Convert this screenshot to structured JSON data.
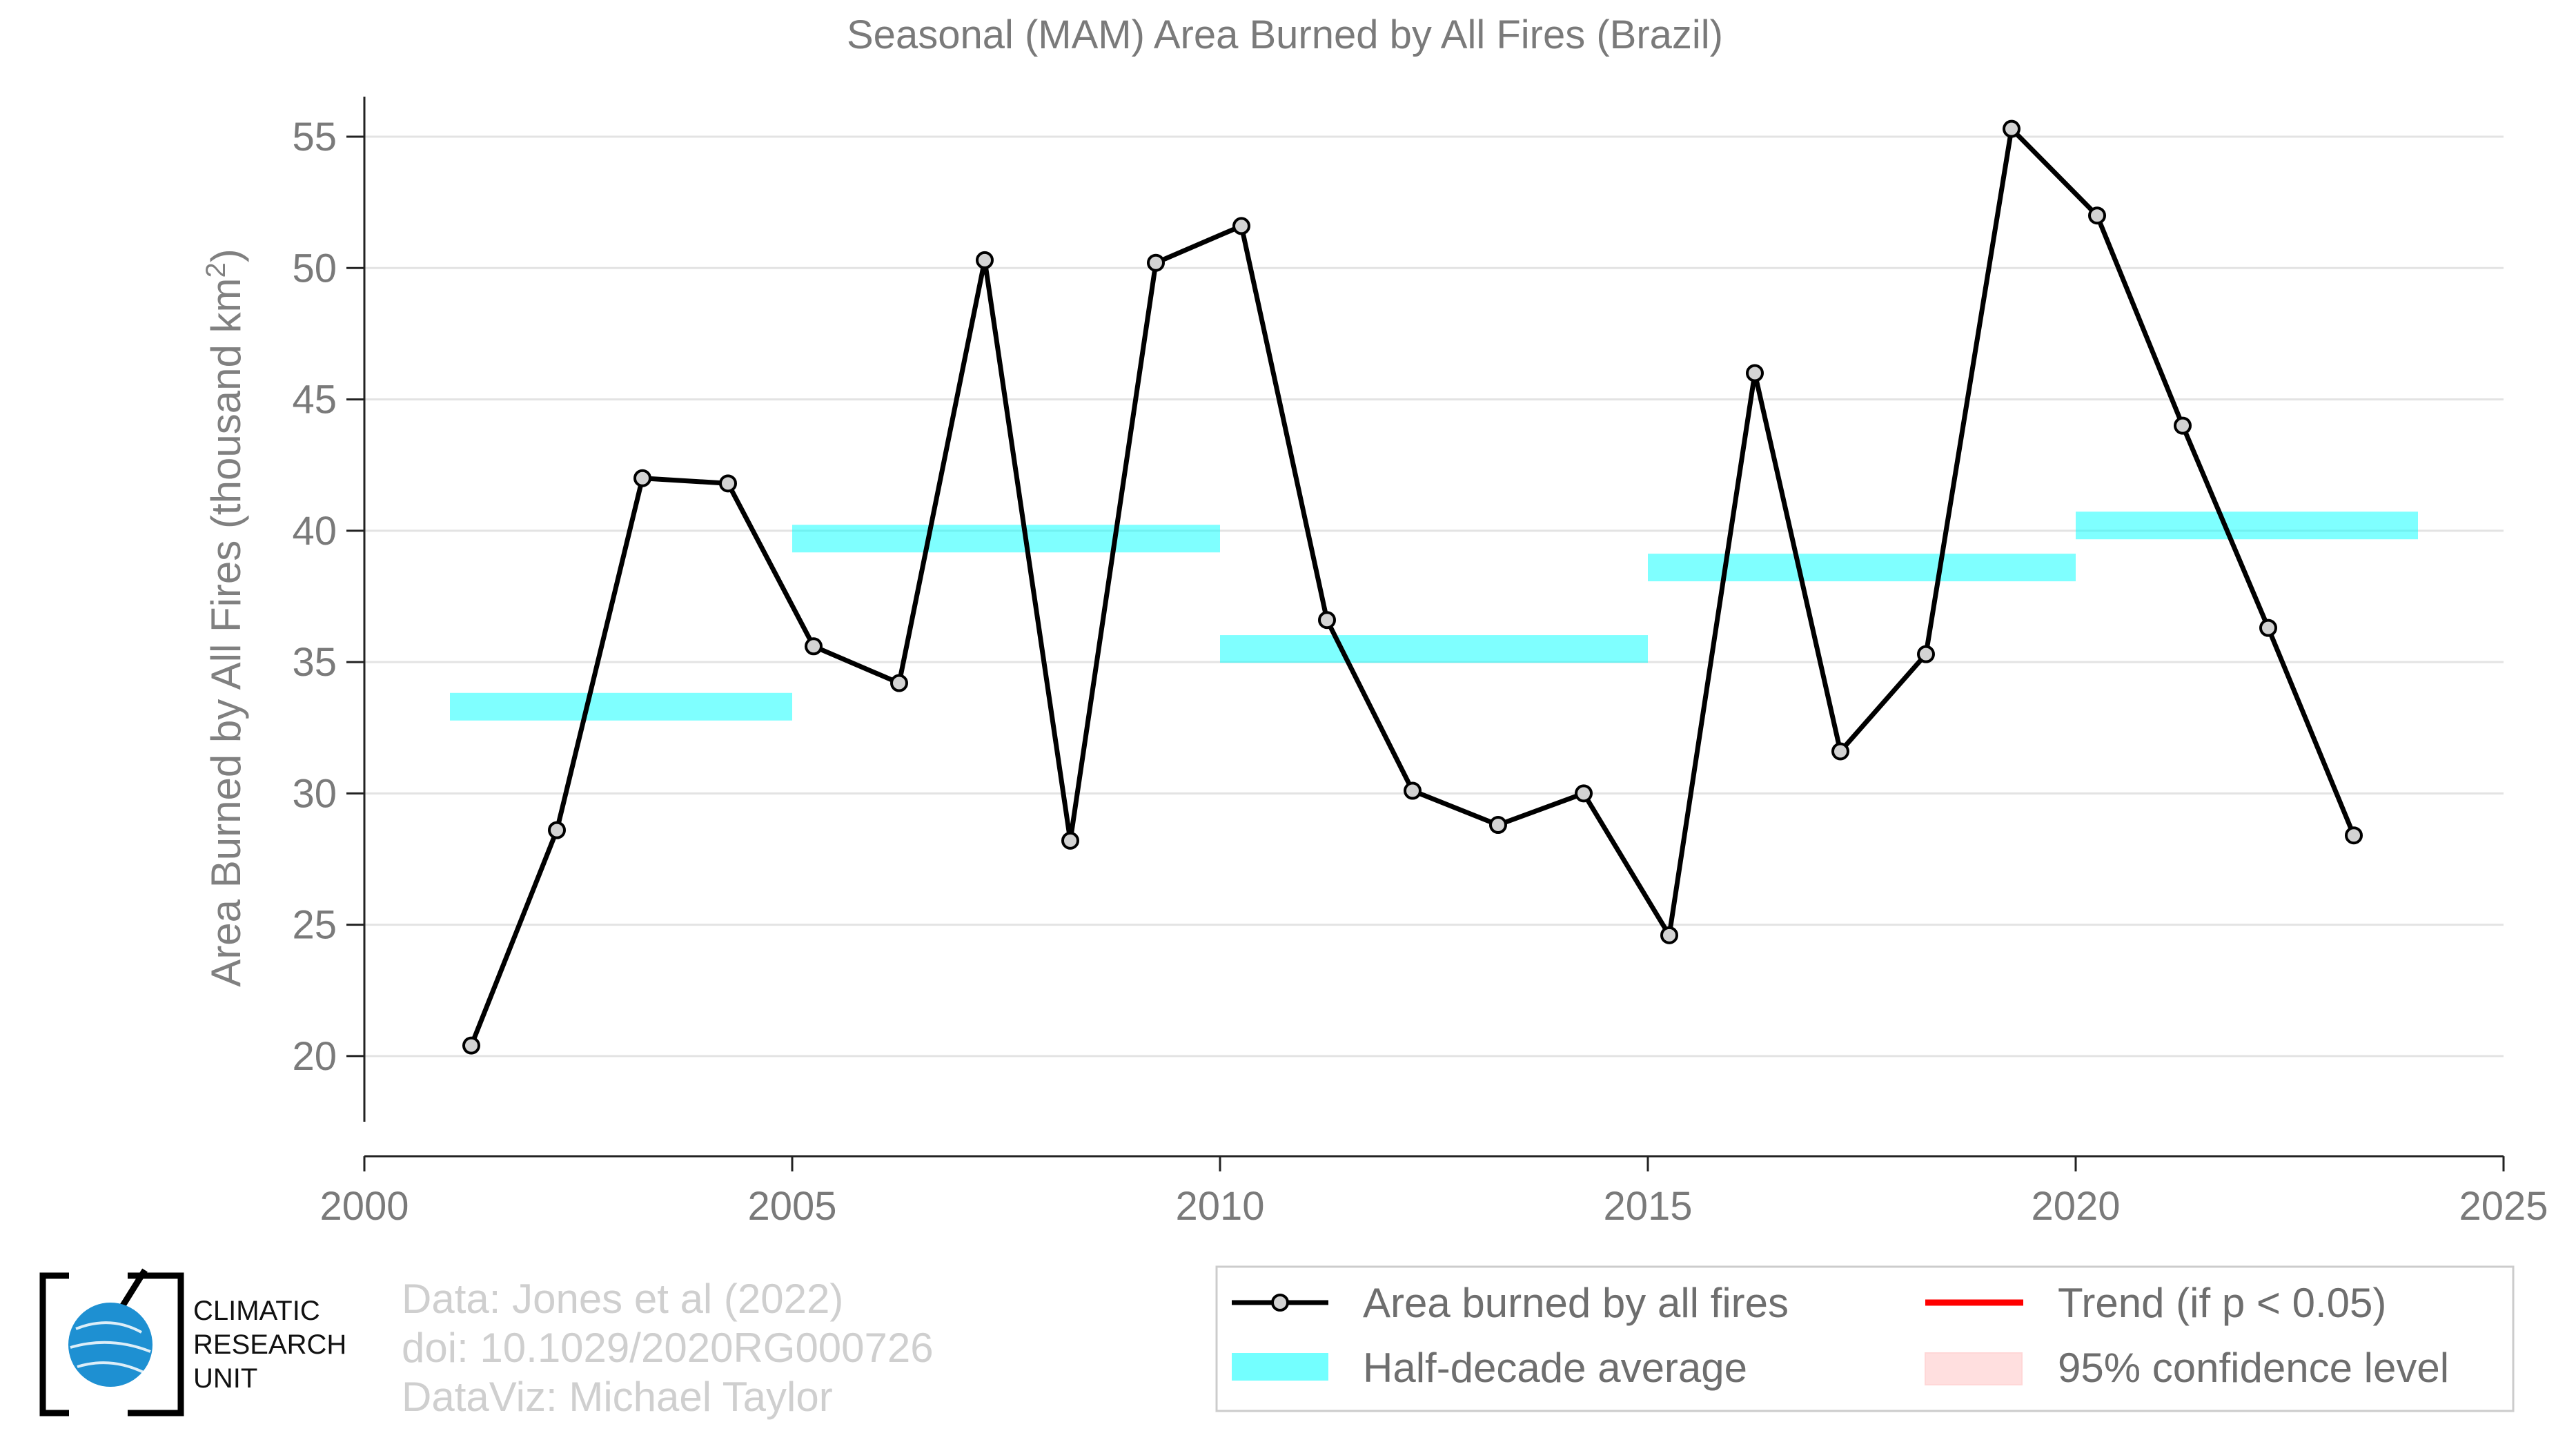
{
  "chart_data": {
    "type": "line",
    "title": "Seasonal (MAM) Area Burned by All Fires (Brazil)",
    "ylabel": "Area Burned by All Fires (thousand km",
    "ylabel_superscript": "2",
    "ylabel_close": ")",
    "xlabel": "",
    "xlim": [
      2000,
      2025
    ],
    "ylim": [
      17.5,
      56
    ],
    "x_ticks": [
      2000,
      2005,
      2010,
      2015,
      2020,
      2025
    ],
    "y_ticks": [
      20,
      25,
      30,
      35,
      40,
      45,
      50,
      55
    ],
    "grid": "horizontal",
    "legend_position": "bottom-right",
    "series": [
      {
        "name": "Area burned by all fires",
        "color": "#000000",
        "marker_fill": "#d3d3d3",
        "x": [
          2001.25,
          2002.25,
          2003.25,
          2004.25,
          2005.25,
          2006.25,
          2007.25,
          2008.25,
          2009.25,
          2010.25,
          2011.25,
          2012.25,
          2013.25,
          2014.25,
          2015.25,
          2016.25,
          2017.25,
          2018.25,
          2019.25,
          2020.25,
          2021.25,
          2022.25,
          2023.25
        ],
        "y": [
          20.4,
          28.6,
          42.0,
          41.8,
          35.6,
          34.2,
          50.3,
          28.2,
          50.2,
          51.6,
          36.6,
          30.1,
          28.8,
          30.0,
          24.6,
          46.0,
          31.6,
          35.3,
          55.3,
          52.0,
          44.0,
          36.3,
          28.4
        ]
      }
    ],
    "half_decade_average": {
      "name": "Half-decade average",
      "color": "#00ffff",
      "segments": [
        {
          "x_start": 2001,
          "x_end": 2005,
          "value": 33.3
        },
        {
          "x_start": 2005,
          "x_end": 2010,
          "value": 39.7
        },
        {
          "x_start": 2010,
          "x_end": 2015,
          "value": 35.5
        },
        {
          "x_start": 2015,
          "x_end": 2020,
          "value": 38.6
        },
        {
          "x_start": 2020,
          "x_end": 2024,
          "value": 40.2
        }
      ]
    },
    "legend": {
      "items": [
        {
          "label": "Area burned by all fires",
          "symbol": "line-marker",
          "color": "#000000"
        },
        {
          "label": "Trend (if p < 0.05)",
          "symbol": "line",
          "color": "#ff0000"
        },
        {
          "label": "Half-decade average",
          "symbol": "band",
          "color": "#00ffff"
        },
        {
          "label": "95% confidence level",
          "symbol": "band",
          "color": "#ffc0c0"
        }
      ]
    }
  },
  "credits": {
    "line1": "Data: Jones et al (2022)",
    "line2": "doi: 10.1029/2020RG000726",
    "line3": "DataViz: Michael Taylor"
  },
  "logo": {
    "line1": "CLIMATIC",
    "line2": "RESEARCH",
    "line3": "UNIT",
    "globe_color": "#1e90d2"
  }
}
